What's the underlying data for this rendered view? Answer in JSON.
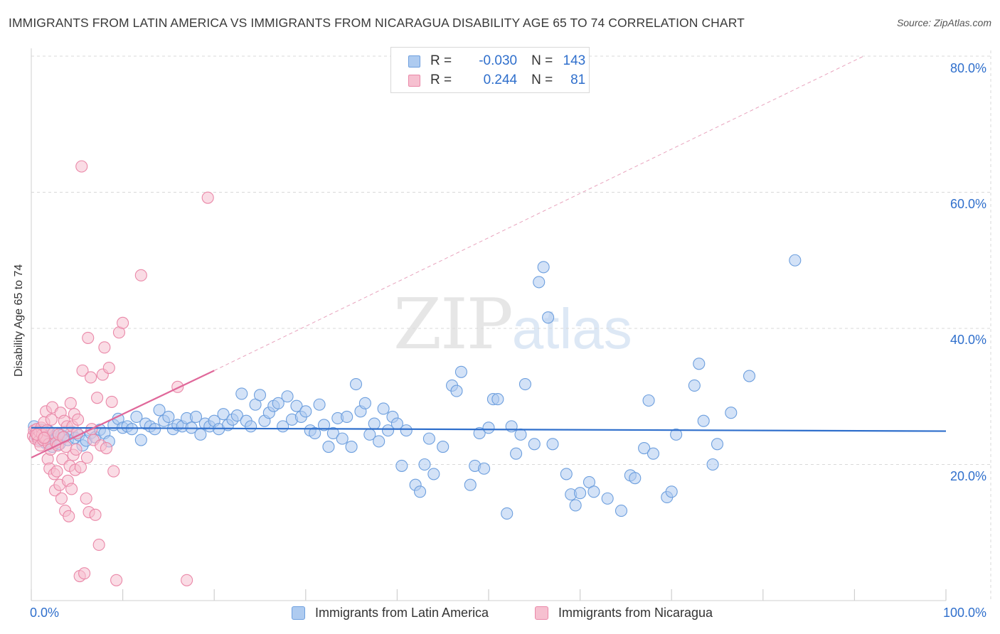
{
  "title": "IMMIGRANTS FROM LATIN AMERICA VS IMMIGRANTS FROM NICARAGUA DISABILITY AGE 65 TO 74 CORRELATION CHART",
  "source": "Source: ZipAtlas.com",
  "watermark": {
    "zip": "ZIP",
    "atlas": "atlas"
  },
  "legend_top": {
    "rows": [
      {
        "r_label": "R =",
        "r_value": "-0.030",
        "n_label": "N =",
        "n_value": "143"
      },
      {
        "r_label": "R =",
        "r_value": "0.244",
        "n_label": "N =",
        "n_value": "81"
      }
    ]
  },
  "colors": {
    "blue_fill": "#aecbf0",
    "blue_stroke": "#6d9fde",
    "blue_line": "#2f6fcc",
    "pink_fill": "#f6c0d0",
    "pink_stroke": "#ea88a8",
    "pink_line": "#e0689a",
    "grid": "#d9d9d9",
    "axis_text": "#2f6fcc"
  },
  "chart_data": {
    "type": "scatter",
    "title": "IMMIGRANTS FROM LATIN AMERICA VS IMMIGRANTS FROM NICARAGUA DISABILITY AGE 65 TO 74 CORRELATION CHART",
    "xlabel": "",
    "ylabel": "Disability Age 65 to 74",
    "xlim": [
      0,
      100
    ],
    "ylim": [
      0,
      80
    ],
    "x_ticks": [
      "0.0%",
      "100.0%"
    ],
    "y_ticks": [
      "20.0%",
      "40.0%",
      "60.0%",
      "80.0%"
    ],
    "y_tick_values": [
      20,
      40,
      60,
      80
    ],
    "grid": true,
    "legend_position": "bottom",
    "series": [
      {
        "name": "Immigrants from Latin America",
        "r": -0.03,
        "n": 143,
        "trend": {
          "x": [
            0,
            100
          ],
          "y": [
            25.4,
            24.9
          ],
          "style": "solid"
        },
        "points": [
          [
            0.3,
            25.6
          ],
          [
            0.5,
            24.2
          ],
          [
            0.7,
            24.8
          ],
          [
            0.9,
            23.6
          ],
          [
            1.1,
            25.1
          ],
          [
            1.3,
            24.0
          ],
          [
            1.5,
            23.2
          ],
          [
            1.7,
            24.5
          ],
          [
            1.9,
            24.9
          ],
          [
            2.1,
            23.4
          ],
          [
            2.3,
            22.6
          ],
          [
            2.5,
            24.1
          ],
          [
            2.7,
            23.8
          ],
          [
            2.9,
            24.6
          ],
          [
            3.1,
            23.0
          ],
          [
            3.3,
            24.3
          ],
          [
            3.6,
            24.0
          ],
          [
            4.0,
            23.6
          ],
          [
            4.4,
            24.8
          ],
          [
            4.8,
            23.9
          ],
          [
            5.2,
            24.3
          ],
          [
            5.6,
            22.8
          ],
          [
            6.0,
            23.5
          ],
          [
            6.5,
            24.6
          ],
          [
            7.0,
            24.0
          ],
          [
            7.5,
            25.1
          ],
          [
            8.0,
            24.6
          ],
          [
            8.5,
            23.4
          ],
          [
            9.0,
            25.8
          ],
          [
            9.5,
            26.7
          ],
          [
            10.0,
            25.4
          ],
          [
            10.5,
            25.6
          ],
          [
            11.0,
            25.2
          ],
          [
            11.5,
            27.0
          ],
          [
            12.0,
            23.6
          ],
          [
            12.5,
            26.0
          ],
          [
            13.0,
            25.6
          ],
          [
            13.5,
            25.2
          ],
          [
            14.0,
            28.0
          ],
          [
            14.5,
            26.4
          ],
          [
            15.0,
            27.0
          ],
          [
            15.5,
            25.2
          ],
          [
            16.0,
            25.8
          ],
          [
            16.5,
            25.6
          ],
          [
            17.0,
            26.8
          ],
          [
            17.5,
            25.4
          ],
          [
            18.0,
            27.0
          ],
          [
            18.5,
            24.4
          ],
          [
            19.0,
            26.0
          ],
          [
            19.5,
            25.6
          ],
          [
            20.0,
            26.4
          ],
          [
            20.5,
            25.2
          ],
          [
            21.0,
            27.4
          ],
          [
            21.5,
            25.8
          ],
          [
            22.0,
            26.6
          ],
          [
            22.5,
            27.2
          ],
          [
            23.0,
            30.4
          ],
          [
            23.5,
            26.4
          ],
          [
            24.0,
            25.6
          ],
          [
            24.5,
            28.8
          ],
          [
            25.0,
            30.2
          ],
          [
            25.5,
            26.4
          ],
          [
            26.0,
            27.6
          ],
          [
            26.5,
            28.6
          ],
          [
            27.0,
            29.0
          ],
          [
            27.5,
            25.6
          ],
          [
            28.0,
            30.0
          ],
          [
            28.5,
            26.6
          ],
          [
            29.0,
            28.6
          ],
          [
            29.5,
            27.0
          ],
          [
            30.0,
            27.8
          ],
          [
            30.5,
            25.0
          ],
          [
            31.0,
            24.6
          ],
          [
            31.5,
            28.8
          ],
          [
            32.0,
            25.8
          ],
          [
            32.5,
            22.6
          ],
          [
            33.0,
            24.6
          ],
          [
            33.5,
            26.8
          ],
          [
            34.0,
            23.8
          ],
          [
            34.5,
            27.0
          ],
          [
            35.0,
            22.6
          ],
          [
            35.5,
            31.8
          ],
          [
            36.0,
            27.8
          ],
          [
            36.5,
            29.0
          ],
          [
            37.0,
            24.4
          ],
          [
            37.5,
            26.0
          ],
          [
            38.0,
            23.4
          ],
          [
            38.5,
            28.2
          ],
          [
            39.0,
            25.0
          ],
          [
            39.5,
            27.0
          ],
          [
            40.0,
            26.0
          ],
          [
            40.5,
            19.8
          ],
          [
            41.0,
            25.0
          ],
          [
            42.0,
            17.0
          ],
          [
            42.5,
            16.0
          ],
          [
            43.0,
            20.0
          ],
          [
            43.5,
            23.8
          ],
          [
            44.0,
            18.6
          ],
          [
            45.0,
            22.6
          ],
          [
            46.0,
            31.6
          ],
          [
            46.5,
            30.8
          ],
          [
            47.0,
            33.6
          ],
          [
            48.0,
            17.0
          ],
          [
            48.5,
            19.8
          ],
          [
            49.0,
            24.6
          ],
          [
            49.5,
            19.4
          ],
          [
            50.0,
            25.4
          ],
          [
            50.5,
            29.6
          ],
          [
            51.0,
            29.6
          ],
          [
            52.0,
            12.8
          ],
          [
            52.5,
            25.6
          ],
          [
            53.0,
            21.6
          ],
          [
            53.5,
            24.4
          ],
          [
            54.0,
            31.8
          ],
          [
            55.0,
            23.0
          ],
          [
            55.5,
            46.8
          ],
          [
            56.0,
            49.0
          ],
          [
            56.5,
            41.6
          ],
          [
            57.0,
            23.0
          ],
          [
            58.5,
            18.6
          ],
          [
            59.0,
            15.6
          ],
          [
            59.5,
            14.0
          ],
          [
            60.0,
            15.8
          ],
          [
            61.0,
            17.4
          ],
          [
            61.5,
            16.0
          ],
          [
            63.0,
            15.0
          ],
          [
            64.5,
            13.2
          ],
          [
            65.5,
            18.4
          ],
          [
            66.0,
            18.0
          ],
          [
            67.0,
            22.4
          ],
          [
            67.5,
            29.4
          ],
          [
            68.0,
            21.6
          ],
          [
            69.5,
            15.2
          ],
          [
            70.0,
            16.0
          ],
          [
            70.5,
            24.4
          ],
          [
            72.5,
            31.6
          ],
          [
            73.0,
            34.8
          ],
          [
            73.5,
            26.4
          ],
          [
            74.5,
            20.0
          ],
          [
            75.0,
            23.0
          ],
          [
            76.5,
            27.6
          ],
          [
            78.5,
            33.0
          ],
          [
            83.5,
            50.0
          ]
        ]
      },
      {
        "name": "Immigrants from Nicaragua",
        "r": 0.244,
        "n": 81,
        "trend": {
          "x": [
            0,
            20
          ],
          "y": [
            21.0,
            33.8
          ],
          "style": "solid",
          "extension_x": [
            20,
            91
          ],
          "extension_y": [
            33.8,
            80.0
          ],
          "extension_style": "dashed"
        },
        "points": [
          [
            0.2,
            24.2
          ],
          [
            0.3,
            25.0
          ],
          [
            0.4,
            23.8
          ],
          [
            0.5,
            24.6
          ],
          [
            0.6,
            25.2
          ],
          [
            0.7,
            24.0
          ],
          [
            0.8,
            23.4
          ],
          [
            0.9,
            24.8
          ],
          [
            1.0,
            22.8
          ],
          [
            1.1,
            25.4
          ],
          [
            1.2,
            24.4
          ],
          [
            1.3,
            23.6
          ],
          [
            1.4,
            26.2
          ],
          [
            1.5,
            24.0
          ],
          [
            1.6,
            27.8
          ],
          [
            1.7,
            25.0
          ],
          [
            1.8,
            20.8
          ],
          [
            1.9,
            23.0
          ],
          [
            2.0,
            19.4
          ],
          [
            2.1,
            22.2
          ],
          [
            2.2,
            26.6
          ],
          [
            2.3,
            28.4
          ],
          [
            2.4,
            24.6
          ],
          [
            2.5,
            18.6
          ],
          [
            2.6,
            16.2
          ],
          [
            2.7,
            23.2
          ],
          [
            2.8,
            19.0
          ],
          [
            2.9,
            22.8
          ],
          [
            3.0,
            24.4
          ],
          [
            3.1,
            17.0
          ],
          [
            3.2,
            27.6
          ],
          [
            3.3,
            15.0
          ],
          [
            3.4,
            20.8
          ],
          [
            3.5,
            24.0
          ],
          [
            3.6,
            26.4
          ],
          [
            3.7,
            13.2
          ],
          [
            3.8,
            22.6
          ],
          [
            3.9,
            25.6
          ],
          [
            4.0,
            17.6
          ],
          [
            4.1,
            12.4
          ],
          [
            4.2,
            19.8
          ],
          [
            4.3,
            29.0
          ],
          [
            4.4,
            16.4
          ],
          [
            4.5,
            25.6
          ],
          [
            4.6,
            21.4
          ],
          [
            4.7,
            27.4
          ],
          [
            4.8,
            19.2
          ],
          [
            4.9,
            22.2
          ],
          [
            5.0,
            24.6
          ],
          [
            5.1,
            26.6
          ],
          [
            5.3,
            3.6
          ],
          [
            5.4,
            19.6
          ],
          [
            5.5,
            63.8
          ],
          [
            5.6,
            33.8
          ],
          [
            5.8,
            4.0
          ],
          [
            6.0,
            15.0
          ],
          [
            6.1,
            21.0
          ],
          [
            6.2,
            38.6
          ],
          [
            6.3,
            13.0
          ],
          [
            6.5,
            32.8
          ],
          [
            6.6,
            25.2
          ],
          [
            6.8,
            23.6
          ],
          [
            7.0,
            12.6
          ],
          [
            7.2,
            29.8
          ],
          [
            7.4,
            8.2
          ],
          [
            7.6,
            22.8
          ],
          [
            7.8,
            33.2
          ],
          [
            8.0,
            37.2
          ],
          [
            8.2,
            22.4
          ],
          [
            8.5,
            34.2
          ],
          [
            8.8,
            29.2
          ],
          [
            9.0,
            19.0
          ],
          [
            9.3,
            3.0
          ],
          [
            9.6,
            39.4
          ],
          [
            10.0,
            40.8
          ],
          [
            12.0,
            47.8
          ],
          [
            16.0,
            31.4
          ],
          [
            17.0,
            3.0
          ],
          [
            19.3,
            59.2
          ],
          [
            0.6,
            24.4
          ],
          [
            1.4,
            23.9
          ]
        ]
      }
    ]
  }
}
